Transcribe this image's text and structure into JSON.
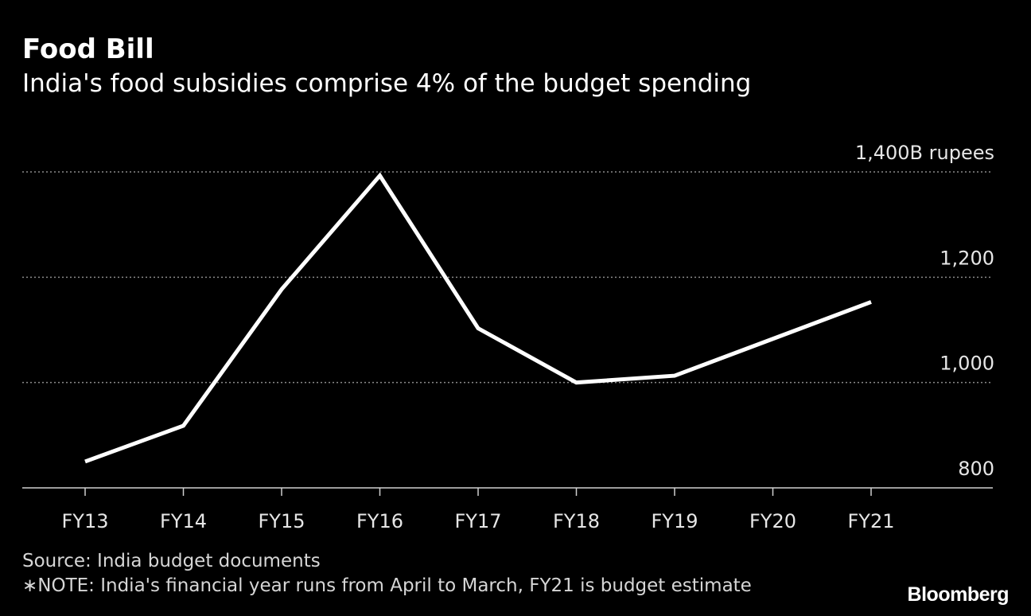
{
  "header": {
    "title": "Food Bill",
    "subtitle": "India's food subsidies comprise 4% of the budget spending"
  },
  "footer": {
    "source": "Source: India budget documents",
    "note": "∗NOTE: India's financial year runs from April to March, FY21 is budget estimate",
    "brand": "Bloomberg"
  },
  "colors": {
    "background": "#000000",
    "line": "#ffffff",
    "grid": "#8a8a8a",
    "text": "#ffffff"
  },
  "chart_data": {
    "type": "line",
    "title": "Food Bill",
    "subtitle": "India's food subsidies comprise 4% of the budget spending",
    "xlabel": "",
    "ylabel": "",
    "categories": [
      "FY13",
      "FY14",
      "FY15",
      "FY16",
      "FY17",
      "FY18",
      "FY19",
      "FY20",
      "FY21"
    ],
    "series": [
      {
        "values": [
          850,
          918,
          1177,
          1393,
          1103,
          1000,
          1013,
          1083,
          1153
        ]
      }
    ],
    "ylim": [
      800,
      1400
    ],
    "yticks": [
      800,
      1000,
      1200,
      1400
    ],
    "ytick_labels": [
      "800",
      "1,000",
      "1,200",
      "1,400B rupees"
    ],
    "grid": true,
    "grid_style": "dotted",
    "y_axis_side": "right",
    "legend": "none"
  }
}
